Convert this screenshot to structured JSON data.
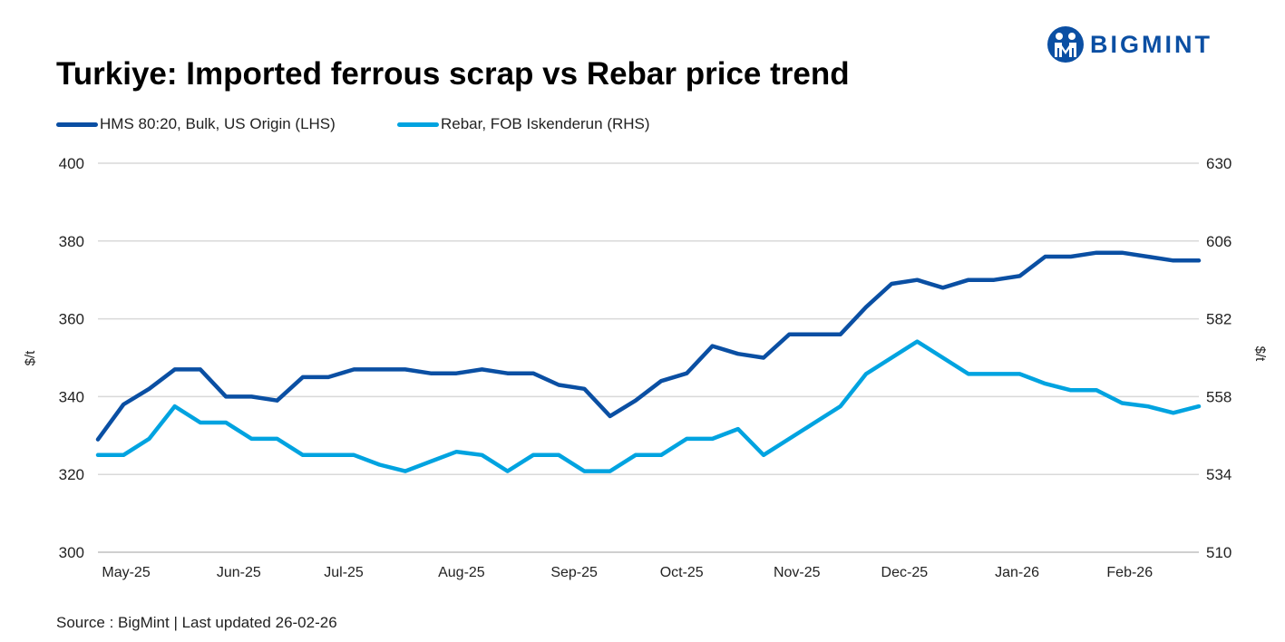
{
  "logo": {
    "text": "BIGMINT"
  },
  "title": "Turkiye: Imported ferrous scrap vs Rebar price trend",
  "source": "Source : BigMint | Last updated 26-02-26",
  "colors": {
    "hms": "#0a4fa3",
    "rebar": "#00a3e0",
    "grid": "#d9d9d9"
  },
  "chart_data": {
    "type": "line",
    "title": "Turkiye: Imported ferrous scrap vs Rebar price trend",
    "ylabel_left": "$/t",
    "ylabel_right": "$/t",
    "ylim_left": [
      300,
      400
    ],
    "yticks_left": [
      "300",
      "320",
      "340",
      "360",
      "380",
      "400"
    ],
    "ylim_right": [
      510,
      630
    ],
    "yticks_right": [
      "510",
      "534",
      "558",
      "582",
      "606",
      "630"
    ],
    "grid": true,
    "legend_position": "top-left",
    "month_labels": [
      {
        "label": "May-25",
        "at": 1.1
      },
      {
        "label": "Jun-25",
        "at": 5.5
      },
      {
        "label": "Jul-25",
        "at": 9.6
      },
      {
        "label": "Aug-25",
        "at": 14.2
      },
      {
        "label": "Sep-25",
        "at": 18.6
      },
      {
        "label": "Oct-25",
        "at": 22.8
      },
      {
        "label": "Nov-25",
        "at": 27.3
      },
      {
        "label": "Dec-25",
        "at": 31.5
      },
      {
        "label": "Jan-26",
        "at": 35.9
      },
      {
        "label": "Feb-26",
        "at": 40.3
      }
    ],
    "series": [
      {
        "name": "HMS 80:20, Bulk, US Origin (LHS)",
        "axis": "left",
        "values": [
          329,
          338,
          342,
          347,
          347,
          340,
          340,
          339,
          345,
          345,
          347,
          347,
          347,
          346,
          346,
          347,
          346,
          346,
          343,
          342,
          335,
          339,
          344,
          346,
          353,
          351,
          350,
          356,
          356,
          356,
          363,
          369,
          370,
          368,
          370,
          370,
          371,
          376,
          376,
          377,
          377,
          376,
          375,
          375
        ]
      },
      {
        "name": "Rebar, FOB Iskenderun (RHS)",
        "axis": "right",
        "values": [
          540,
          540,
          545,
          555,
          550,
          550,
          545,
          545,
          540,
          540,
          540,
          537,
          535,
          538,
          541,
          540,
          535,
          540,
          540,
          535,
          535,
          540,
          540,
          545,
          545,
          548,
          540,
          545,
          550,
          555,
          565,
          570,
          575,
          570,
          565,
          565,
          565,
          562,
          560,
          560,
          556,
          555,
          553,
          555
        ]
      }
    ]
  }
}
